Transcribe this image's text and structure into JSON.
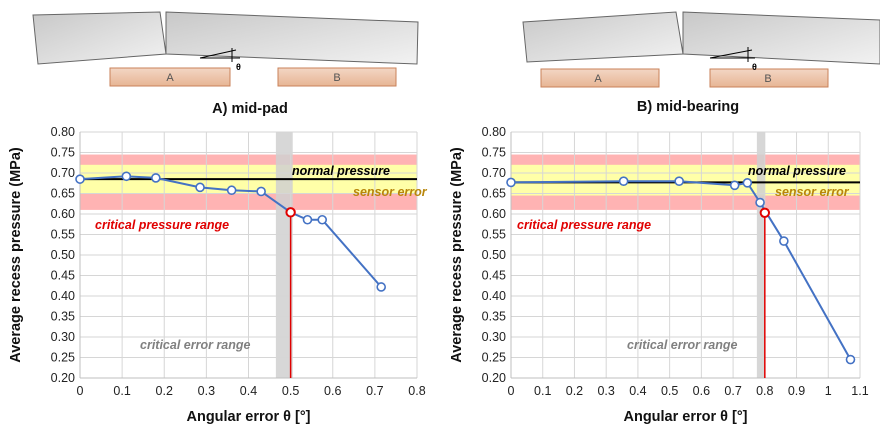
{
  "chart_data": [
    {
      "type": "line",
      "title": "A) mid-pad",
      "xlabel": "Angular error θ [°]",
      "ylabel": "Average recess pressure (MPa)",
      "xlim": [
        0,
        0.8
      ],
      "ylim": [
        0.2,
        0.8
      ],
      "xticks": [
        "0",
        "0.1",
        "0.2",
        "0.3",
        "0.4",
        "0.5",
        "0.6",
        "0.7",
        "0.8"
      ],
      "yticks": [
        "0.20",
        "0.25",
        "0.30",
        "0.35",
        "0.40",
        "0.45",
        "0.50",
        "0.55",
        "0.60",
        "0.65",
        "0.70",
        "0.75",
        "0.80"
      ],
      "grid": true,
      "series": [
        {
          "x": [
            0,
            0.11,
            0.18,
            0.285,
            0.36,
            0.43,
            0.5,
            0.54,
            0.575,
            0.715
          ],
          "y": [
            0.685,
            0.692,
            0.688,
            0.665,
            0.658,
            0.655,
            0.604,
            0.586,
            0.586,
            0.422
          ],
          "color": "#4472C4"
        }
      ],
      "normal_pressure": {
        "value": 0.685,
        "label": "normal pressure",
        "color": "#000000"
      },
      "sensor_error_band": {
        "range": [
          0.65,
          0.72
        ],
        "label": "sensor error",
        "color": "#FFFFA8",
        "text_color": "#B8860B"
      },
      "critical_pressure_band": {
        "range": [
          0.61,
          0.745
        ],
        "label": "critical pressure range",
        "color": "#FFB3B3",
        "text_color": "#E00000"
      },
      "critical_error_range": {
        "x": [
          0.465,
          0.505
        ],
        "label": "critical error range",
        "color": "#D0D0D0",
        "text_color": "#808080"
      },
      "critical_point": {
        "x": 0.5,
        "y": 0.604,
        "color": "#E00000"
      }
    },
    {
      "type": "line",
      "title": "B) mid-bearing",
      "xlabel": "Angular error θ [°]",
      "ylabel": "Average recess pressure (MPa)",
      "xlim": [
        0,
        1.1
      ],
      "ylim": [
        0.2,
        0.8
      ],
      "xticks": [
        "0",
        "0.1",
        "0.2",
        "0.3",
        "0.4",
        "0.5",
        "0.6",
        "0.7",
        "0.8",
        "0.9",
        "1",
        "1.1"
      ],
      "yticks": [
        "0.20",
        "0.25",
        "0.30",
        "0.35",
        "0.40",
        "0.45",
        "0.50",
        "0.55",
        "0.60",
        "0.65",
        "0.70",
        "0.75",
        "0.80"
      ],
      "grid": true,
      "series": [
        {
          "x": [
            0,
            0.355,
            0.53,
            0.705,
            0.745,
            0.785,
            0.86,
            1.07
          ],
          "y": [
            0.677,
            0.68,
            0.68,
            0.67,
            0.676,
            0.628,
            0.534,
            0.245
          ],
          "color": "#4472C4"
        }
      ],
      "normal_pressure": {
        "value": 0.677,
        "label": "normal pressure",
        "color": "#000000"
      },
      "sensor_error_band": {
        "range": [
          0.645,
          0.72
        ],
        "label": "sensor error",
        "color": "#FFFFA8",
        "text_color": "#B8860B"
      },
      "critical_pressure_band": {
        "range": [
          0.61,
          0.745
        ],
        "label": "critical pressure range",
        "color": "#FFB3B3",
        "text_color": "#E00000"
      },
      "critical_error_range": {
        "x": [
          0.775,
          0.8
        ],
        "label": "critical error range",
        "color": "#D0D0D0",
        "text_color": "#808080"
      },
      "critical_point": {
        "x": 0.8,
        "y": 0.603,
        "color": "#E00000"
      }
    }
  ],
  "schematics": [
    {
      "pad_labels": [
        "A",
        "B"
      ],
      "angle_label": "θ"
    },
    {
      "pad_labels": [
        "A",
        "B"
      ],
      "angle_label": "θ"
    }
  ]
}
